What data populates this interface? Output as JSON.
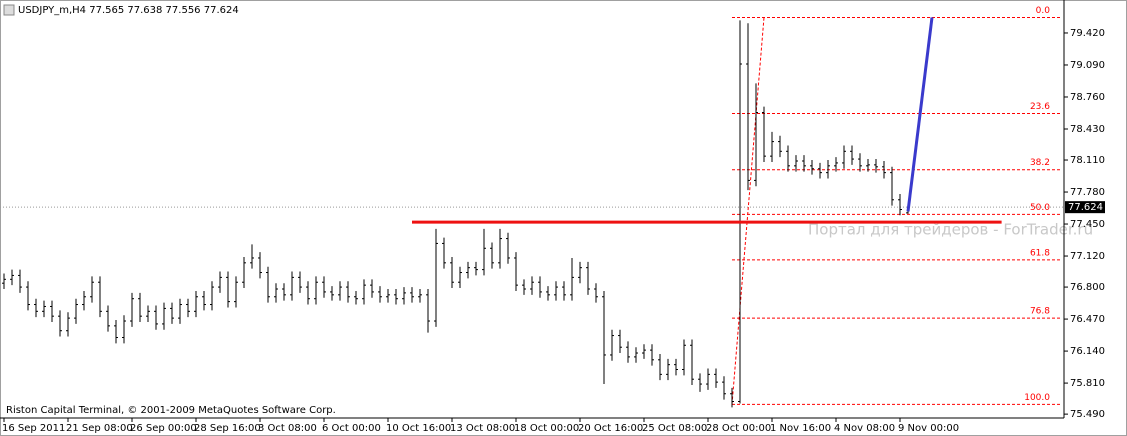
{
  "chart_data": {
    "type": "ohlc",
    "header": "USDJPY_m,H4  77.565 77.638 77.556 77.624",
    "footer": "Riston Capital Terminal, © 2001-2009 MetaQuotes Software Corp.",
    "watermark": "Портал для трейдеров - ForTrader.ru",
    "color": "#000000",
    "bars": [
      [
        76.84,
        76.94,
        76.78,
        76.88
      ],
      [
        76.88,
        76.98,
        76.82,
        76.92
      ],
      [
        76.92,
        76.98,
        76.74,
        76.8
      ],
      [
        76.8,
        76.86,
        76.56,
        76.62
      ],
      [
        76.62,
        76.68,
        76.49,
        76.55
      ],
      [
        76.55,
        76.66,
        76.49,
        76.6
      ],
      [
        76.6,
        76.66,
        76.44,
        76.5
      ],
      [
        76.5,
        76.56,
        76.29,
        76.35
      ],
      [
        76.35,
        76.54,
        76.29,
        76.48
      ],
      [
        76.48,
        76.68,
        76.42,
        76.62
      ],
      [
        76.62,
        76.76,
        76.56,
        76.7
      ],
      [
        76.7,
        76.91,
        76.64,
        76.85
      ],
      [
        76.85,
        76.91,
        76.49,
        76.55
      ],
      [
        76.55,
        76.61,
        76.34,
        76.4
      ],
      [
        76.4,
        76.46,
        76.22,
        76.28
      ],
      [
        76.28,
        76.51,
        76.22,
        76.45
      ],
      [
        76.45,
        76.74,
        76.39,
        76.68
      ],
      [
        76.68,
        76.74,
        76.44,
        76.5
      ],
      [
        76.5,
        76.61,
        76.44,
        76.55
      ],
      [
        76.55,
        76.61,
        76.36,
        76.42
      ],
      [
        76.42,
        76.64,
        76.36,
        76.58
      ],
      [
        76.58,
        76.64,
        76.42,
        76.48
      ],
      [
        76.48,
        76.68,
        76.42,
        76.62
      ],
      [
        76.62,
        76.68,
        76.49,
        76.55
      ],
      [
        76.55,
        76.76,
        76.49,
        76.7
      ],
      [
        76.7,
        76.76,
        76.56,
        76.62
      ],
      [
        76.62,
        76.86,
        76.56,
        76.8
      ],
      [
        76.8,
        76.96,
        76.74,
        76.9
      ],
      [
        76.9,
        76.96,
        76.59,
        76.65
      ],
      [
        76.65,
        76.91,
        76.59,
        76.85
      ],
      [
        76.85,
        77.11,
        76.79,
        77.05
      ],
      [
        77.05,
        77.24,
        76.99,
        77.1
      ],
      [
        77.1,
        77.16,
        76.89,
        76.95
      ],
      [
        76.95,
        77.01,
        76.64,
        76.7
      ],
      [
        76.7,
        76.84,
        76.64,
        76.78
      ],
      [
        76.78,
        76.84,
        76.66,
        76.72
      ],
      [
        76.72,
        76.96,
        76.66,
        76.9
      ],
      [
        76.9,
        76.96,
        76.74,
        76.8
      ],
      [
        76.8,
        76.86,
        76.62,
        76.68
      ],
      [
        76.68,
        76.91,
        76.62,
        76.85
      ],
      [
        76.85,
        76.91,
        76.69,
        76.75
      ],
      [
        76.75,
        76.81,
        76.66,
        76.72
      ],
      [
        76.72,
        76.86,
        76.66,
        76.8
      ],
      [
        76.8,
        76.86,
        76.64,
        76.7
      ],
      [
        76.7,
        76.76,
        76.62,
        76.68
      ],
      [
        76.68,
        76.88,
        76.62,
        76.82
      ],
      [
        76.82,
        76.88,
        76.69,
        76.75
      ],
      [
        76.75,
        76.81,
        76.64,
        76.7
      ],
      [
        76.7,
        76.78,
        76.64,
        76.72
      ],
      [
        76.72,
        76.78,
        76.62,
        76.68
      ],
      [
        76.68,
        76.8,
        76.62,
        76.74
      ],
      [
        76.74,
        76.8,
        76.64,
        76.7
      ],
      [
        76.7,
        76.78,
        76.64,
        76.72
      ],
      [
        76.72,
        76.78,
        76.33,
        76.45
      ],
      [
        76.45,
        77.4,
        76.39,
        77.25
      ],
      [
        77.25,
        77.31,
        76.99,
        77.05
      ],
      [
        77.05,
        77.11,
        76.79,
        76.85
      ],
      [
        76.85,
        77.01,
        76.79,
        76.95
      ],
      [
        76.95,
        77.06,
        76.89,
        77.0
      ],
      [
        77.0,
        77.06,
        76.92,
        76.98
      ],
      [
        76.98,
        77.4,
        76.92,
        77.2
      ],
      [
        77.2,
        77.26,
        76.99,
        77.05
      ],
      [
        77.05,
        77.4,
        76.99,
        77.3
      ],
      [
        77.3,
        77.36,
        77.04,
        77.1
      ],
      [
        77.1,
        77.16,
        76.76,
        76.82
      ],
      [
        76.82,
        76.88,
        76.72,
        76.78
      ],
      [
        76.78,
        76.91,
        76.72,
        76.85
      ],
      [
        76.85,
        76.91,
        76.69,
        76.75
      ],
      [
        76.75,
        76.81,
        76.66,
        76.72
      ],
      [
        76.72,
        76.86,
        76.66,
        76.8
      ],
      [
        76.8,
        76.86,
        76.66,
        76.72
      ],
      [
        76.72,
        77.1,
        76.66,
        76.9
      ],
      [
        76.9,
        77.06,
        76.84,
        77.0
      ],
      [
        77.0,
        77.06,
        76.72,
        76.78
      ],
      [
        76.78,
        76.84,
        76.64,
        76.7
      ],
      [
        76.7,
        76.76,
        75.8,
        76.1
      ],
      [
        76.1,
        76.36,
        76.04,
        76.3
      ],
      [
        76.3,
        76.36,
        76.12,
        76.18
      ],
      [
        76.18,
        76.24,
        76.02,
        76.08
      ],
      [
        76.08,
        76.18,
        76.02,
        76.12
      ],
      [
        76.12,
        76.21,
        76.06,
        76.15
      ],
      [
        76.15,
        76.21,
        75.99,
        76.05
      ],
      [
        76.05,
        76.11,
        75.84,
        75.9
      ],
      [
        75.9,
        76.06,
        75.84,
        76.0
      ],
      [
        76.0,
        76.06,
        75.89,
        75.95
      ],
      [
        75.95,
        76.26,
        75.89,
        76.2
      ],
      [
        76.2,
        76.26,
        75.79,
        75.85
      ],
      [
        75.85,
        75.91,
        75.72,
        75.8
      ],
      [
        75.8,
        75.96,
        75.74,
        75.9
      ],
      [
        75.9,
        75.96,
        75.76,
        75.82
      ],
      [
        75.82,
        75.88,
        75.64,
        75.7
      ],
      [
        75.7,
        75.76,
        75.56,
        75.62
      ],
      [
        75.62,
        79.55,
        75.6,
        79.1
      ],
      [
        79.1,
        79.52,
        77.8,
        77.9
      ],
      [
        77.9,
        78.9,
        77.84,
        78.6
      ],
      [
        78.6,
        78.66,
        78.09,
        78.15
      ],
      [
        78.15,
        78.4,
        78.09,
        78.3
      ],
      [
        78.3,
        78.36,
        78.14,
        78.2
      ],
      [
        78.2,
        78.26,
        77.99,
        78.05
      ],
      [
        78.05,
        78.16,
        77.99,
        78.1
      ],
      [
        78.1,
        78.16,
        77.99,
        78.05
      ],
      [
        78.05,
        78.11,
        77.96,
        78.02
      ],
      [
        78.02,
        78.08,
        77.92,
        77.98
      ],
      [
        77.98,
        78.11,
        77.92,
        78.05
      ],
      [
        78.05,
        78.14,
        77.99,
        78.08
      ],
      [
        78.08,
        78.26,
        78.02,
        78.2
      ],
      [
        78.2,
        78.26,
        78.06,
        78.12
      ],
      [
        78.12,
        78.18,
        77.99,
        78.05
      ],
      [
        78.05,
        78.12,
        77.99,
        78.06
      ],
      [
        78.06,
        78.12,
        77.98,
        78.04
      ],
      [
        78.04,
        78.1,
        77.92,
        77.98
      ],
      [
        77.98,
        78.04,
        77.64,
        77.7
      ],
      [
        77.7,
        77.76,
        77.54,
        77.6
      ],
      [
        77.565,
        77.638,
        77.556,
        77.624
      ]
    ],
    "xlim": [
      -0.5,
      132.5
    ],
    "xticks": [
      {
        "value": 0,
        "label": "16 Sep 2011"
      },
      {
        "value": 8,
        "label": "21 Sep 08:00"
      },
      {
        "value": 16,
        "label": "26 Sep 00:00"
      },
      {
        "value": 24,
        "label": "28 Sep 16:00"
      },
      {
        "value": 32,
        "label": "3 Oct 08:00"
      },
      {
        "value": 40,
        "label": "6 Oct 00:00"
      },
      {
        "value": 48,
        "label": "10 Oct 16:00"
      },
      {
        "value": 56,
        "label": "13 Oct 08:00"
      },
      {
        "value": 64,
        "label": "18 Oct 00:00"
      },
      {
        "value": 72,
        "label": "20 Oct 16:00"
      },
      {
        "value": 80,
        "label": "25 Oct 08:00"
      },
      {
        "value": 88,
        "label": "28 Oct 00:00"
      },
      {
        "value": 96,
        "label": "1 Nov 16:00"
      },
      {
        "value": 104,
        "label": "4 Nov 08:00"
      },
      {
        "value": 112,
        "label": "9 Nov 00:00"
      }
    ],
    "ylim": [
      75.45,
      79.76
    ],
    "yticks": [
      {
        "value": 79.42,
        "label": "79.420"
      },
      {
        "value": 79.09,
        "label": "79.090"
      },
      {
        "value": 78.76,
        "label": "78.760"
      },
      {
        "value": 78.43,
        "label": "78.430"
      },
      {
        "value": 78.11,
        "label": "78.110"
      },
      {
        "value": 77.78,
        "label": "77.780"
      },
      {
        "value": 77.45,
        "label": "77.450"
      },
      {
        "value": 77.12,
        "label": "77.120"
      },
      {
        "value": 76.8,
        "label": "76.800"
      },
      {
        "value": 76.47,
        "label": "76.470"
      },
      {
        "value": 76.14,
        "label": "76.140"
      },
      {
        "value": 75.81,
        "label": "75.810"
      },
      {
        "value": 75.49,
        "label": "75.490"
      }
    ],
    "current_price": 77.624,
    "fibo": {
      "color": "#ff0000",
      "x": [
        91,
        132
      ],
      "levels": [
        {
          "value": 79.58,
          "label": "0.0"
        },
        {
          "value": 78.59,
          "label": "23.6"
        },
        {
          "value": 78.01,
          "label": "38.2"
        },
        {
          "value": 77.55,
          "label": "50.0"
        },
        {
          "value": 77.08,
          "label": "61.8"
        },
        {
          "value": 76.48,
          "label": "76.8"
        },
        {
          "value": 75.59,
          "label": "100.0"
        }
      ]
    },
    "hline": {
      "value": 77.47,
      "x": [
        51,
        124.7
      ],
      "color": "#ee1111"
    },
    "trendline": {
      "x": [
        113,
        116
      ],
      "values": [
        77.58,
        79.58
      ],
      "color": "#3a3acc"
    }
  }
}
